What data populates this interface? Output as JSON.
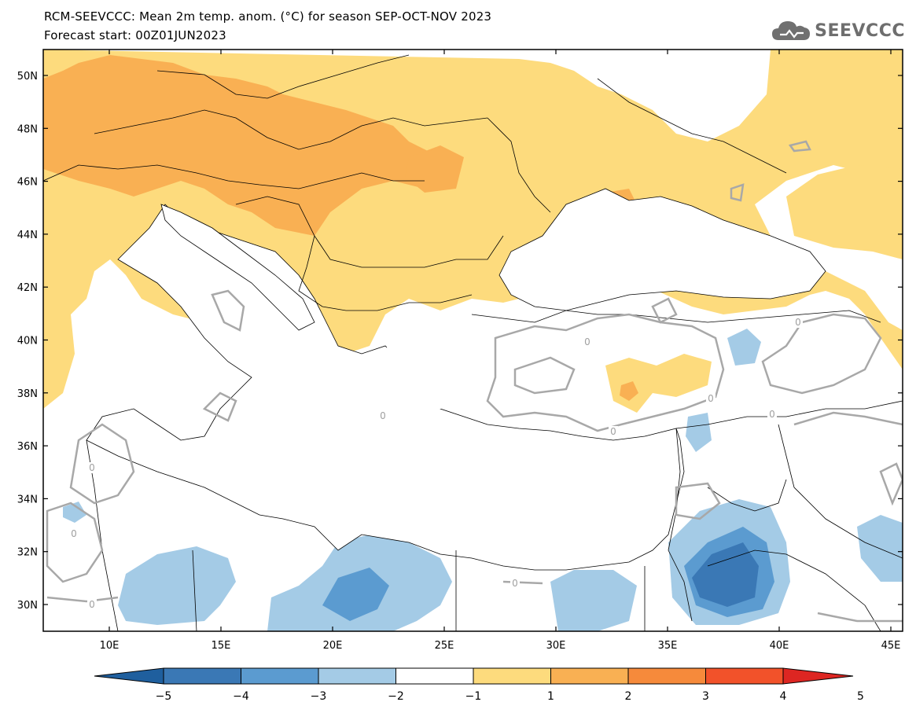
{
  "header": {
    "title": "RCM-SEEVCCC: Mean 2m temp. anom. (°C) for season SEP-OCT-NOV 2023",
    "subtitle": "Forecast start: 00Z01JUN2023"
  },
  "logo": {
    "text": "SEEVCCC",
    "icon": "cloud-icon"
  },
  "map": {
    "lat_labels": [
      "50N",
      "48N",
      "46N",
      "44N",
      "42N",
      "40N",
      "38N",
      "36N",
      "34N",
      "32N",
      "30N"
    ],
    "lon_labels": [
      "10E",
      "15E",
      "20E",
      "25E",
      "30E",
      "35E",
      "40E",
      "45E"
    ],
    "contour_label": "0"
  },
  "colorbar": {
    "labels": [
      "−5",
      "−4",
      "−3",
      "−2",
      "−1",
      "1",
      "2",
      "3",
      "4",
      "5"
    ],
    "colors": [
      "#1f5f9e",
      "#3a78b5",
      "#5b9bd0",
      "#a4cbe6",
      "#ffffff",
      "#fddb7d",
      "#f9b053",
      "#f68a3b",
      "#f2522a",
      "#dd2622"
    ]
  }
}
